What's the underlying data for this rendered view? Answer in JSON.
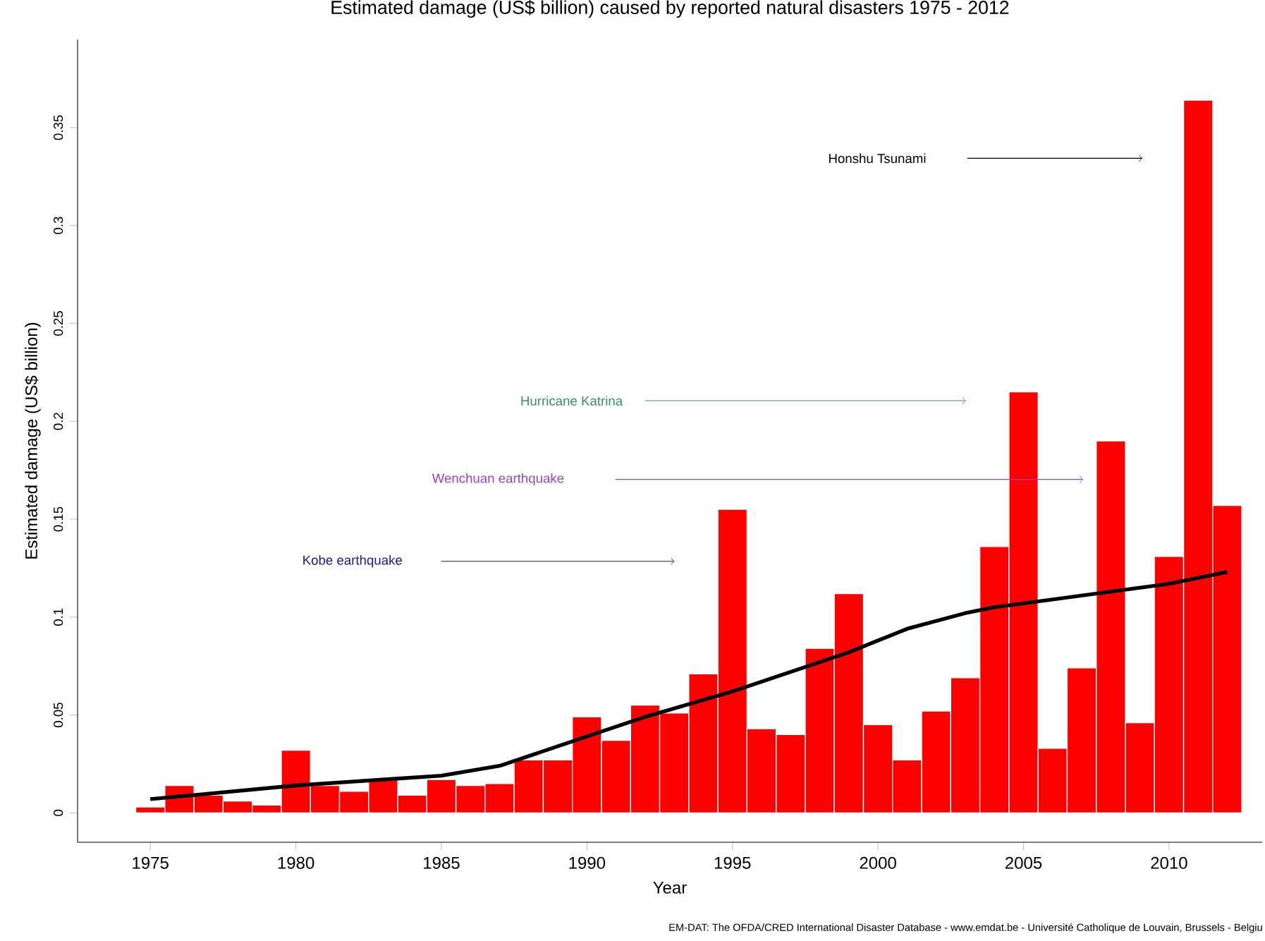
{
  "chart_data": {
    "type": "bar",
    "title": "Estimated damage (US$ billion) caused by reported natural disasters 1975 - 2012",
    "xlabel": "Year",
    "ylabel": "Estimated damage (US$ billion)",
    "x": [
      1975,
      1976,
      1977,
      1978,
      1979,
      1980,
      1981,
      1982,
      1983,
      1984,
      1985,
      1986,
      1987,
      1988,
      1989,
      1990,
      1991,
      1992,
      1993,
      1994,
      1995,
      1996,
      1997,
      1998,
      1999,
      2000,
      2001,
      2002,
      2003,
      2004,
      2005,
      2006,
      2007,
      2008,
      2009,
      2010,
      2011,
      2012
    ],
    "series": [
      {
        "color": "#ff0000",
        "values": [
          0.003,
          0.014,
          0.009,
          0.006,
          0.004,
          0.032,
          0.014,
          0.011,
          0.017,
          0.009,
          0.017,
          0.014,
          0.015,
          0.027,
          0.027,
          0.049,
          0.037,
          0.055,
          0.051,
          0.071,
          0.155,
          0.043,
          0.04,
          0.084,
          0.112,
          0.045,
          0.027,
          0.052,
          0.069,
          0.136,
          0.215,
          0.033,
          0.074,
          0.19,
          0.046,
          0.131,
          0.364,
          0.157
        ]
      },
      {
        "type": "line",
        "color": "#000000",
        "x": [
          1975,
          1980,
          1985,
          1987,
          1990,
          1992,
          1995,
          1997,
          1999,
          2000,
          2001,
          2003,
          2004,
          2005,
          2008,
          2010,
          2012
        ],
        "values": [
          0.007,
          0.014,
          0.019,
          0.024,
          0.039,
          0.049,
          0.062,
          0.072,
          0.082,
          0.088,
          0.094,
          0.102,
          0.105,
          0.107,
          0.113,
          0.117,
          0.123
        ]
      }
    ],
    "xlim": [
      1972.5,
      2013.2
    ],
    "ylim": [
      -0.015,
      0.395
    ],
    "xticks": [
      1975,
      1980,
      1985,
      1990,
      1995,
      2000,
      2005,
      2010
    ],
    "yticks": [
      0,
      0.05,
      0.1,
      0.15,
      0.2,
      0.25,
      0.3,
      0.35
    ],
    "grid": false,
    "annotations": [
      "Kobe earthquake",
      "Hurricane Katrina",
      "Wenchuan earthquake",
      "Honshu Tsunami",
      "EM-DAT: The OFDA/CRED International Disaster Database - www.emdat.be - Université Catholique de Louvain, Brussels - Belgiu"
    ]
  }
}
